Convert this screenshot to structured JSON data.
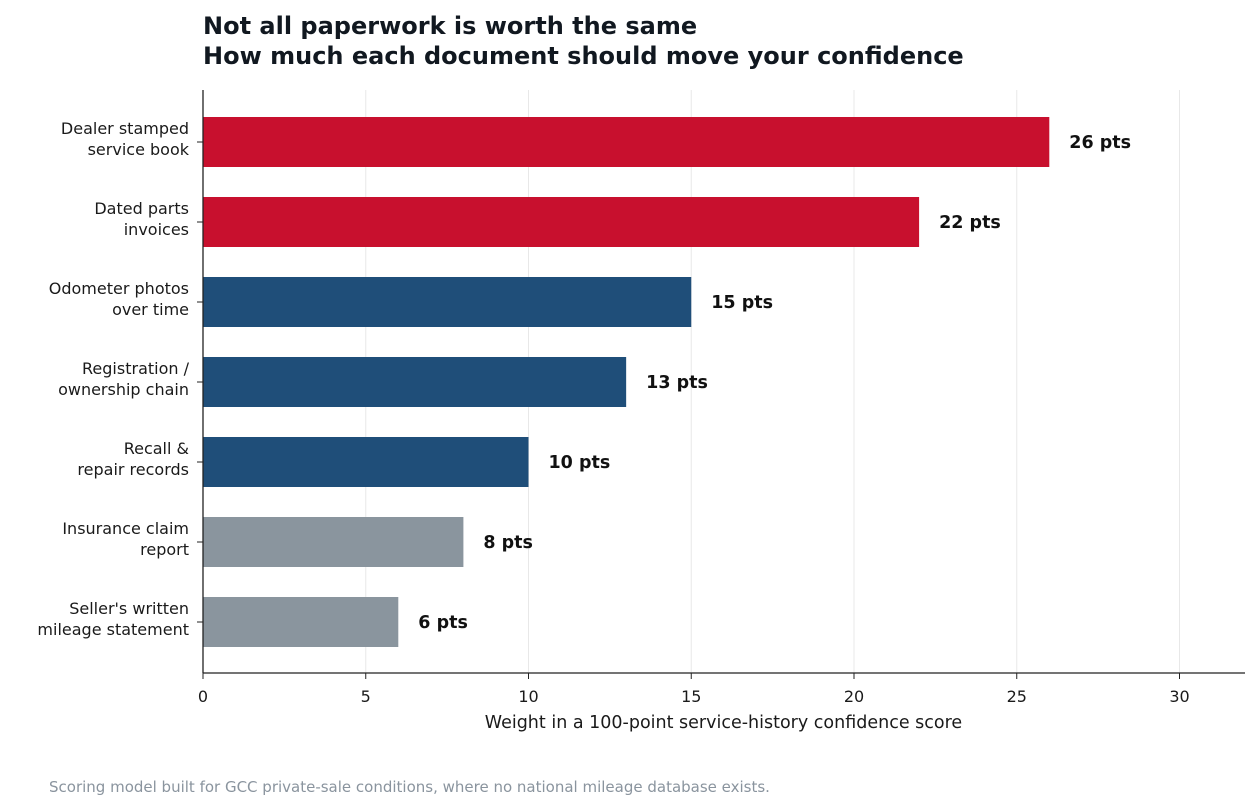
{
  "chart_data": {
    "type": "bar",
    "orientation": "horizontal",
    "title": [
      "Not all paperwork is worth the same",
      "How much each document should move your confidence"
    ],
    "xlabel": "Weight in a 100-point service-history confidence score",
    "ylabel": "",
    "xlim": [
      0,
      32
    ],
    "xticks": [
      0,
      5,
      10,
      15,
      20,
      25,
      30
    ],
    "grid": "vertical",
    "categories": [
      [
        "Dealer stamped",
        "service book"
      ],
      [
        "Dated parts",
        "invoices"
      ],
      [
        "Odometer photos",
        "over time"
      ],
      [
        "Registration /",
        "ownership chain"
      ],
      [
        "Recall &",
        "repair records"
      ],
      [
        "Insurance claim",
        "report"
      ],
      [
        "Seller's written",
        "mileage statement"
      ]
    ],
    "values": [
      26,
      22,
      15,
      13,
      10,
      8,
      6
    ],
    "value_labels": [
      "26 pts",
      "22 pts",
      "15 pts",
      "13 pts",
      "10 pts",
      "8 pts",
      "6 pts"
    ],
    "bar_colors": [
      "#c8102e",
      "#c8102e",
      "#1f4e79",
      "#1f4e79",
      "#1f4e79",
      "#8a959e",
      "#8a959e"
    ]
  },
  "footnote": "Scoring model built for GCC private-sale conditions, where no national mileage database exists.",
  "colors": {
    "high": "#c8102e",
    "medium": "#1f4e79",
    "low": "#8a959e",
    "grid": "#e8e8e8",
    "axis": "#222222"
  }
}
